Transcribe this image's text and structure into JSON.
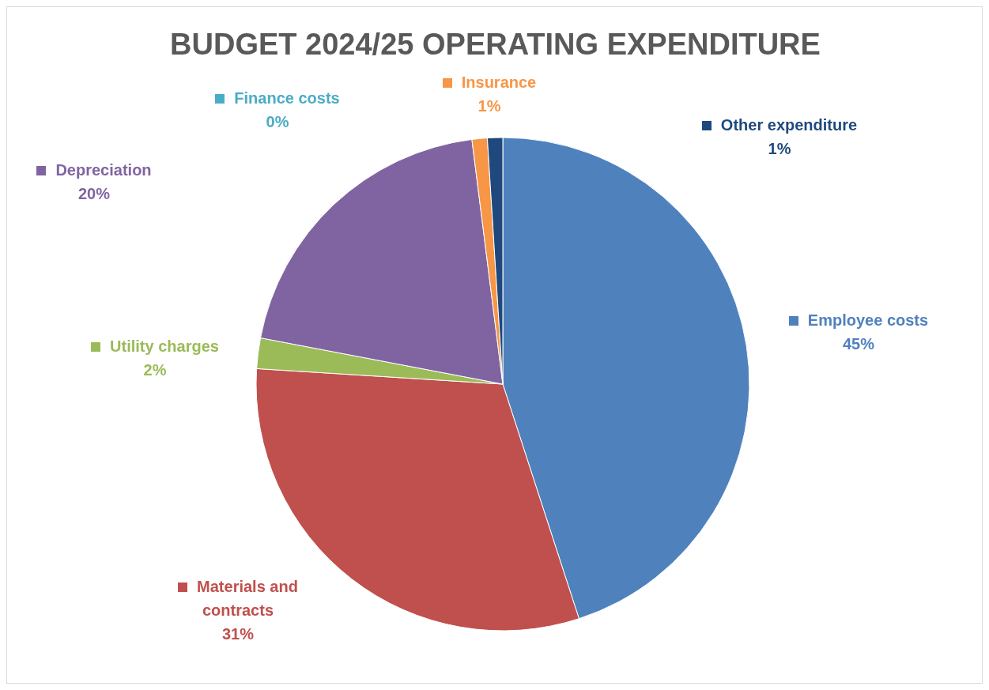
{
  "chart_data": {
    "type": "pie",
    "title": "BUDGET 2024/25 OPERATING EXPENDITURE",
    "categories": [
      "Employee costs",
      "Materials and contracts",
      "Utility charges",
      "Depreciation",
      "Finance costs",
      "Insurance",
      "Other expenditure"
    ],
    "values": [
      45,
      31,
      2,
      20,
      0,
      1,
      1
    ],
    "colors": [
      "#4f81bd",
      "#c0504d",
      "#9bbb59",
      "#8064a2",
      "#4bacc6",
      "#f79646",
      "#1f497d"
    ],
    "legend": "top",
    "value_labels": [
      "45%",
      "31%",
      "2%",
      "20%",
      "0%",
      "1%",
      "1%"
    ]
  }
}
